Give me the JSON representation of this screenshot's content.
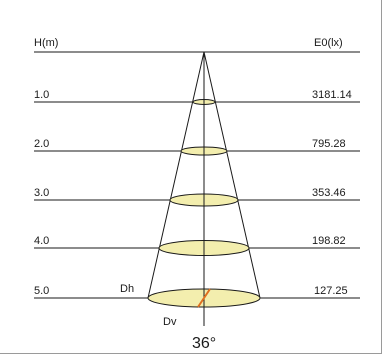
{
  "header": {
    "left_label": "H(m)",
    "right_label": "E0(lx)"
  },
  "rows": [
    {
      "height": "1.0",
      "illuminance": "3181.14"
    },
    {
      "height": "2.0",
      "illuminance": "795.28"
    },
    {
      "height": "3.0",
      "illuminance": "353.46"
    },
    {
      "height": "4.0",
      "illuminance": "198.82"
    },
    {
      "height": "5.0",
      "illuminance": "127.25"
    }
  ],
  "markers": {
    "horizontal_diameter": "Dh",
    "vertical_diameter": "Dv"
  },
  "beam_angle": "36°",
  "colors": {
    "line": "#1a1a1a",
    "ellipse_fill": "#f3eeae",
    "diameter_marker": "#e07020"
  }
}
